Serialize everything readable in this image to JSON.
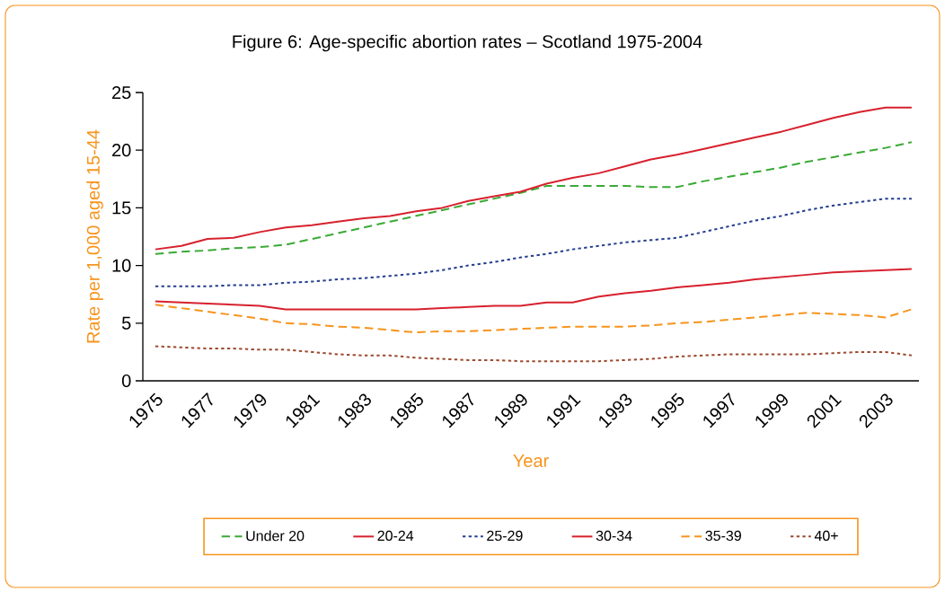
{
  "chart_data": {
    "type": "line",
    "title": "Figure 6: Age-specific abortion rates – Scotland 1975-2004",
    "xlabel": "Year",
    "ylabel": "Rate per 1,000 aged 15-44",
    "categories": [
      "1975",
      null,
      "1977",
      null,
      "1979",
      null,
      "1981",
      null,
      "1983",
      null,
      "1985",
      null,
      "1987",
      null,
      "1989",
      null,
      "1991",
      null,
      "1993",
      null,
      "1995",
      null,
      "1997",
      null,
      "1999",
      null,
      "2001",
      null,
      "2003",
      null
    ],
    "ylim": [
      0,
      25
    ],
    "yticks": [
      0,
      5,
      10,
      15,
      20,
      25
    ],
    "grid": false,
    "legend": "bottom",
    "marker": "none",
    "series": [
      {
        "name": "Under 20",
        "color": "#3aaa35",
        "line_style": "dashed",
        "values": [
          11.0,
          11.2,
          11.3,
          11.5,
          11.6,
          11.8,
          12.3,
          12.8,
          13.3,
          13.8,
          14.3,
          14.8,
          15.3,
          15.8,
          16.3,
          16.9,
          16.9,
          16.9,
          16.9,
          16.8,
          16.8,
          17.3,
          17.7,
          18.1,
          18.5,
          19.0,
          19.4,
          19.8,
          20.2,
          20.7
        ]
      },
      {
        "name": "20-24",
        "color": "#d7212e",
        "line_style": "solid",
        "values": [
          11.4,
          11.7,
          12.3,
          12.4,
          12.9,
          13.3,
          13.5,
          13.8,
          14.1,
          14.3,
          14.7,
          15.0,
          15.6,
          16.0,
          16.4,
          17.1,
          17.6,
          18.0,
          18.6,
          19.2,
          19.6,
          20.1,
          20.6,
          21.1,
          21.6,
          22.2,
          22.8,
          23.3,
          23.7,
          23.7
        ]
      },
      {
        "name": "25-29",
        "color": "#253f8e",
        "line_style": "dotted",
        "values": [
          8.2,
          8.2,
          8.2,
          8.3,
          8.3,
          8.5,
          8.6,
          8.8,
          8.9,
          9.1,
          9.3,
          9.6,
          10.0,
          10.3,
          10.7,
          11.0,
          11.4,
          11.7,
          12.0,
          12.2,
          12.4,
          12.9,
          13.4,
          13.9,
          14.3,
          14.8,
          15.2,
          15.5,
          15.8,
          15.8
        ]
      },
      {
        "name": "30-34",
        "color": "#d7212e",
        "line_style": "solid",
        "values": [
          6.9,
          6.8,
          6.7,
          6.6,
          6.5,
          6.2,
          6.2,
          6.2,
          6.2,
          6.2,
          6.2,
          6.3,
          6.4,
          6.5,
          6.5,
          6.8,
          6.8,
          7.3,
          7.6,
          7.8,
          8.1,
          8.3,
          8.5,
          8.8,
          9.0,
          9.2,
          9.4,
          9.5,
          9.6,
          9.7
        ]
      },
      {
        "name": "35-39",
        "color": "#f7941d",
        "line_style": "dashed",
        "values": [
          6.6,
          6.3,
          6.0,
          5.7,
          5.4,
          5.0,
          4.9,
          4.7,
          4.6,
          4.4,
          4.2,
          4.3,
          4.3,
          4.4,
          4.5,
          4.6,
          4.7,
          4.7,
          4.7,
          4.8,
          5.0,
          5.1,
          5.3,
          5.5,
          5.7,
          5.9,
          5.8,
          5.7,
          5.5,
          6.2
        ]
      },
      {
        "name": "40+",
        "color": "#9c4a2f",
        "line_style": "dotted",
        "values": [
          3.0,
          2.9,
          2.8,
          2.8,
          2.7,
          2.7,
          2.5,
          2.3,
          2.2,
          2.2,
          2.0,
          1.9,
          1.8,
          1.8,
          1.7,
          1.7,
          1.7,
          1.7,
          1.8,
          1.9,
          2.1,
          2.2,
          2.3,
          2.3,
          2.3,
          2.3,
          2.4,
          2.5,
          2.5,
          2.2
        ]
      }
    ]
  }
}
